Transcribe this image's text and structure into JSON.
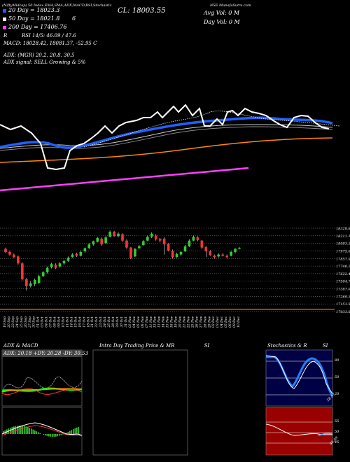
{
  "header": {
    "symbol_code": "(NiftyMidcap) 50 Index",
    "study_list": "EMA,SMA,ADX,MACD,RSI,Stochastic",
    "site": "MunafaSutra.com",
    "exchange": "NSE"
  },
  "legend": {
    "ema20": "20  Day  = 18023.3",
    "ema50": "50  Day  = 18021.8",
    "ema50_suffix": "6",
    "ema200": "200  Day  = 17406.76",
    "rsi_line": "RSI 14/5: 46.09 / 47.6",
    "rsi_prefix": "R",
    "macd_line": "MACD: 18028.42,  18081.37,  -52.95 C",
    "adx_line": "ADX:                      (MGR) 20.2,  20.8,  30.5",
    "adx_signal": "ADX  signal: SELL Growing & 5%"
  },
  "top_info": {
    "cl": "CL: 18003.55",
    "day_vol": "Day Vol: 0  M",
    "avg_vol": "Avg Vol: 0  M"
  },
  "colors": {
    "ema20": "#2060ff",
    "ema50": "#ffffff",
    "ema200": "#ff8800",
    "ema_pink": "#ff40ff",
    "up_candle": "#33cc33",
    "down_candle": "#ff3333",
    "baseline": "#ff8800",
    "stoch_bg": "#000044",
    "rsi_bg": "#990000"
  },
  "chart_data": {
    "type": "line",
    "title": "CL: 18003.55",
    "price_axis_labels": [
      "18328.83",
      "18211.1",
      "18093.37",
      "17975.65",
      "17857.93",
      "17740.2",
      "17622.47",
      "17504.75",
      "17387.02",
      "17269.3",
      "17151.57",
      "17033.85"
    ],
    "date_labels": [
      "19 Sep",
      "20 Sep",
      "23 Sep",
      "24 Sep",
      "25 Sep",
      "26 Sep",
      "27 Sep",
      "30 Sep",
      "01 Oct",
      "03 Oct",
      "04 Oct",
      "07 Oct",
      "08 Oct",
      "09 Oct",
      "10 Oct",
      "11 Oct",
      "14 Oct",
      "15 Oct",
      "16 Oct",
      "17 Oct",
      "18 Oct",
      "21 Oct",
      "22 Oct",
      "23 Oct",
      "24 Oct",
      "25 Oct",
      "28 Oct",
      "29 Oct",
      "30 Oct",
      "31 Oct",
      "01 Nov",
      "04 Nov",
      "05 Nov",
      "06 Nov",
      "07 Nov",
      "11 Nov",
      "12 Nov",
      "13 Nov",
      "14 Nov",
      "15 Nov",
      "18 Nov",
      "19 Nov",
      "20 Nov",
      "21 Nov",
      "22 Nov",
      "25 Nov",
      "26 Nov",
      "27 Nov",
      "28 Nov",
      "29 Nov",
      "02 Dec",
      "03 Dec",
      "04 Dec",
      "05 Dec",
      "06 Dec",
      "09 Dec",
      "10 Dec"
    ],
    "candles": [
      {
        "o": 17990,
        "c": 17940,
        "h": 18010,
        "l": 17925
      },
      {
        "o": 17940,
        "c": 17900,
        "h": 17960,
        "l": 17880
      },
      {
        "o": 17900,
        "c": 17860,
        "h": 17915,
        "l": 17840
      },
      {
        "o": 17870,
        "c": 17760,
        "h": 17885,
        "l": 17740
      },
      {
        "o": 17760,
        "c": 17510,
        "h": 17775,
        "l": 17490
      },
      {
        "o": 17510,
        "c": 17400,
        "h": 17530,
        "l": 17330
      },
      {
        "o": 17400,
        "c": 17445,
        "h": 17480,
        "l": 17380
      },
      {
        "o": 17430,
        "c": 17500,
        "h": 17520,
        "l": 17400
      },
      {
        "o": 17450,
        "c": 17560,
        "h": 17580,
        "l": 17440
      },
      {
        "o": 17560,
        "c": 17620,
        "h": 17640,
        "l": 17540
      },
      {
        "o": 17620,
        "c": 17690,
        "h": 17710,
        "l": 17600
      },
      {
        "o": 17700,
        "c": 17750,
        "h": 17770,
        "l": 17680
      },
      {
        "o": 17740,
        "c": 17690,
        "h": 17760,
        "l": 17670
      },
      {
        "o": 17710,
        "c": 17760,
        "h": 17780,
        "l": 17695
      },
      {
        "o": 17760,
        "c": 17800,
        "h": 17810,
        "l": 17740
      },
      {
        "o": 17800,
        "c": 17850,
        "h": 17870,
        "l": 17785
      },
      {
        "o": 17860,
        "c": 17900,
        "h": 17920,
        "l": 17850
      },
      {
        "o": 17910,
        "c": 17880,
        "h": 17930,
        "l": 17860
      },
      {
        "o": 17880,
        "c": 17940,
        "h": 17960,
        "l": 17870
      },
      {
        "o": 17950,
        "c": 18000,
        "h": 18010,
        "l": 17930
      },
      {
        "o": 18000,
        "c": 18060,
        "h": 18080,
        "l": 17990
      },
      {
        "o": 18060,
        "c": 18110,
        "h": 18120,
        "l": 18040
      },
      {
        "o": 18100,
        "c": 18160,
        "h": 18180,
        "l": 18090
      },
      {
        "o": 18150,
        "c": 18060,
        "h": 18170,
        "l": 18040
      },
      {
        "o": 18080,
        "c": 18170,
        "h": 18190,
        "l": 18070
      },
      {
        "o": 18180,
        "c": 18260,
        "h": 18280,
        "l": 18170
      },
      {
        "o": 18260,
        "c": 18190,
        "h": 18275,
        "l": 18180
      },
      {
        "o": 18190,
        "c": 18230,
        "h": 18250,
        "l": 18170
      },
      {
        "o": 18220,
        "c": 18120,
        "h": 18235,
        "l": 18100
      },
      {
        "o": 18120,
        "c": 18010,
        "h": 18140,
        "l": 17990
      },
      {
        "o": 18010,
        "c": 17840,
        "h": 18020,
        "l": 17830
      },
      {
        "o": 17870,
        "c": 17990,
        "h": 18000,
        "l": 17860
      },
      {
        "o": 18000,
        "c": 18030,
        "h": 18050,
        "l": 17990
      },
      {
        "o": 18050,
        "c": 18110,
        "h": 18130,
        "l": 18040
      },
      {
        "o": 18120,
        "c": 18180,
        "h": 18200,
        "l": 18110
      },
      {
        "o": 18180,
        "c": 18230,
        "h": 18250,
        "l": 18160
      },
      {
        "o": 18200,
        "c": 18140,
        "h": 18220,
        "l": 18120
      },
      {
        "o": 18150,
        "c": 18120,
        "h": 18160,
        "l": 18090
      },
      {
        "o": 18150,
        "c": 18060,
        "h": 18170,
        "l": 17900
      },
      {
        "o": 18070,
        "c": 17960,
        "h": 18080,
        "l": 17950
      },
      {
        "o": 17960,
        "c": 17860,
        "h": 17980,
        "l": 17840
      },
      {
        "o": 17860,
        "c": 17910,
        "h": 17930,
        "l": 17850
      },
      {
        "o": 17900,
        "c": 17940,
        "h": 17960,
        "l": 17880
      },
      {
        "o": 17950,
        "c": 18030,
        "h": 18050,
        "l": 17940
      },
      {
        "o": 18030,
        "c": 18120,
        "h": 18140,
        "l": 18020
      },
      {
        "o": 18120,
        "c": 18180,
        "h": 18200,
        "l": 18110
      },
      {
        "o": 18170,
        "c": 18130,
        "h": 18190,
        "l": 18110
      },
      {
        "o": 18120,
        "c": 18010,
        "h": 18130,
        "l": 17990
      },
      {
        "o": 18020,
        "c": 17950,
        "h": 18030,
        "l": 17860
      },
      {
        "o": 17950,
        "c": 17890,
        "h": 17970,
        "l": 17880
      },
      {
        "o": 17880,
        "c": 17860,
        "h": 17900,
        "l": 17840
      },
      {
        "o": 17870,
        "c": 17900,
        "h": 17920,
        "l": 17850
      },
      {
        "o": 17900,
        "c": 17880,
        "h": 17920,
        "l": 17870
      },
      {
        "o": 17880,
        "c": 17860,
        "h": 17900,
        "l": 17840
      },
      {
        "o": 17880,
        "c": 17940,
        "h": 17960,
        "l": 17870
      },
      {
        "o": 17940,
        "c": 17990,
        "h": 18000,
        "l": 17920
      },
      {
        "o": 17990,
        "c": 18003,
        "h": 18020,
        "l": 17980
      }
    ],
    "support_level": 17033.85,
    "y_range": [
      17000,
      18360
    ]
  },
  "panels": {
    "adx_title": "ADX  & MACD",
    "adx_values": "ADX: 20.18  +DY: 20.28  -DY: 30.53",
    "intraday_title": "Intra  Day  Trading  Price  & MR",
    "intraday_suffix": "SI",
    "stoch_title": "Stochastics & R",
    "stoch_suffix": "SI",
    "stoch_axis": [
      "80",
      "50",
      "20"
    ],
    "rsi_axis": [
      "55",
      "50",
      "45"
    ],
    "stoch_value": "28.87",
    "rsi_value": "46.09"
  }
}
